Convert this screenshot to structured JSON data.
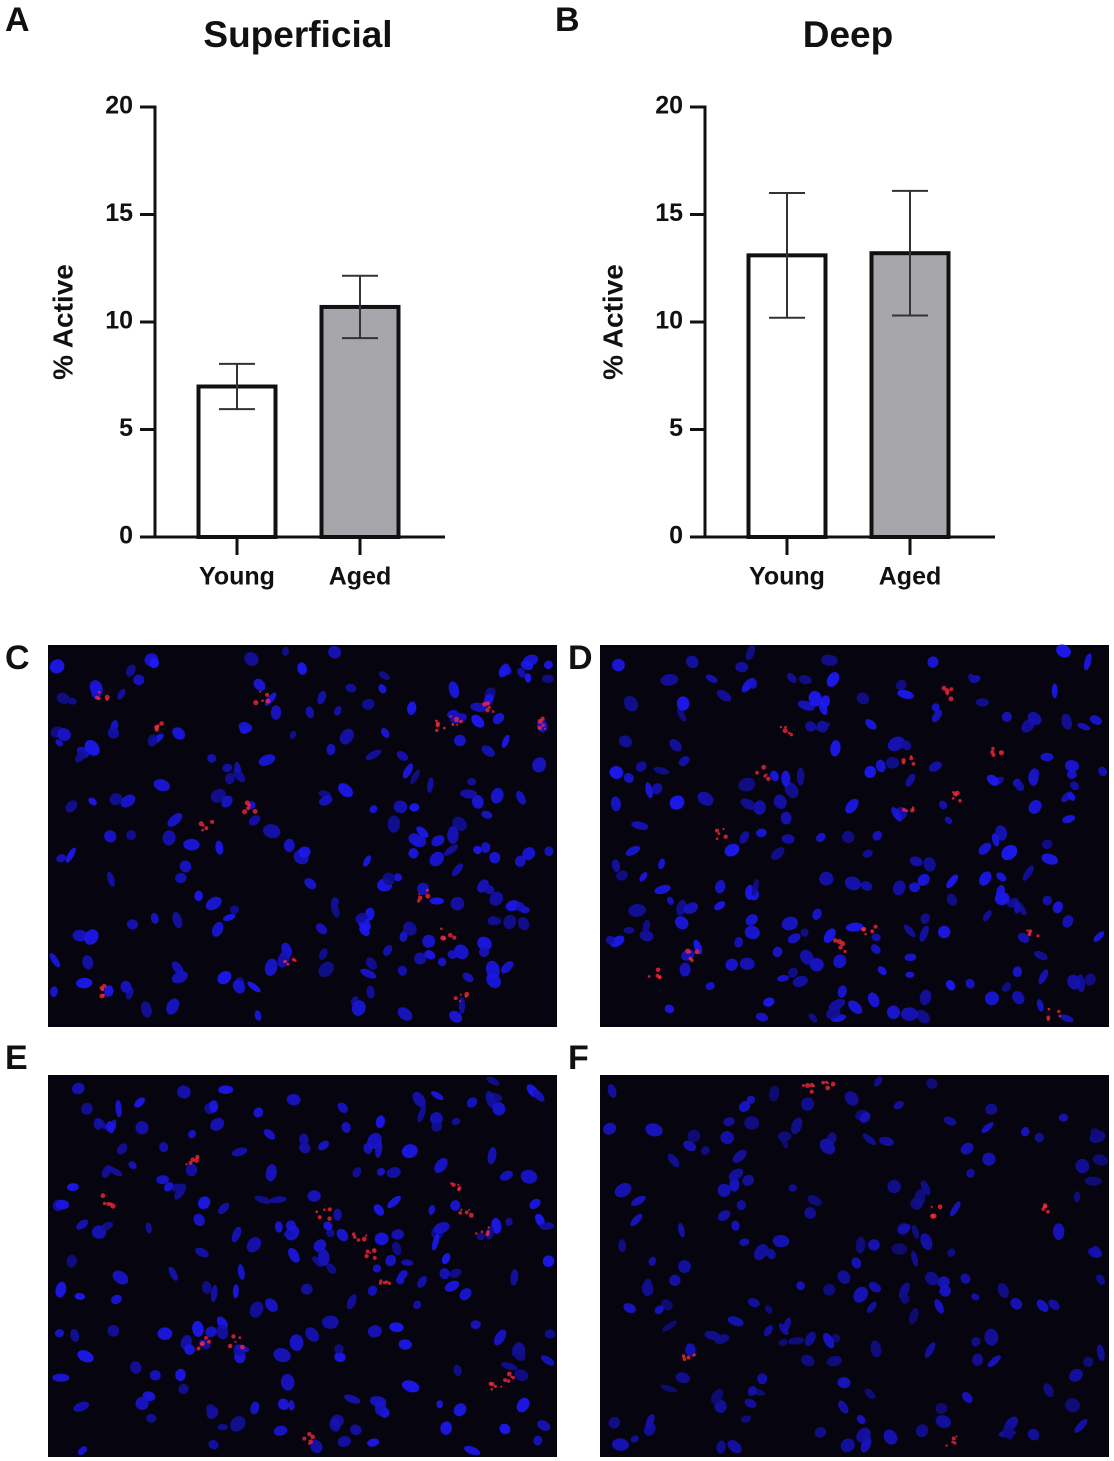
{
  "chart_data": [
    {
      "type": "bar",
      "panel_label": "A",
      "title": "Superficial",
      "y_label": "% Active",
      "categories": [
        "Young",
        "Aged"
      ],
      "values": [
        7.0,
        10.7
      ],
      "errors": [
        1.05,
        1.45
      ],
      "colors": [
        "#ffffff",
        "#a7a7ab"
      ],
      "ylim": [
        0,
        20
      ],
      "yticks": [
        0,
        5,
        10,
        15,
        20
      ]
    },
    {
      "type": "bar",
      "panel_label": "B",
      "title": "Deep",
      "y_label": "% Active",
      "categories": [
        "Young",
        "Aged"
      ],
      "values": [
        13.1,
        13.2
      ],
      "errors": [
        2.9,
        2.9
      ],
      "colors": [
        "#ffffff",
        "#a7a7ab"
      ],
      "ylim": [
        0,
        20
      ],
      "yticks": [
        0,
        5,
        10,
        15,
        20
      ]
    }
  ],
  "images": [
    {
      "panel_label": "C"
    },
    {
      "panel_label": "D"
    },
    {
      "panel_label": "E"
    },
    {
      "panel_label": "F"
    }
  ]
}
